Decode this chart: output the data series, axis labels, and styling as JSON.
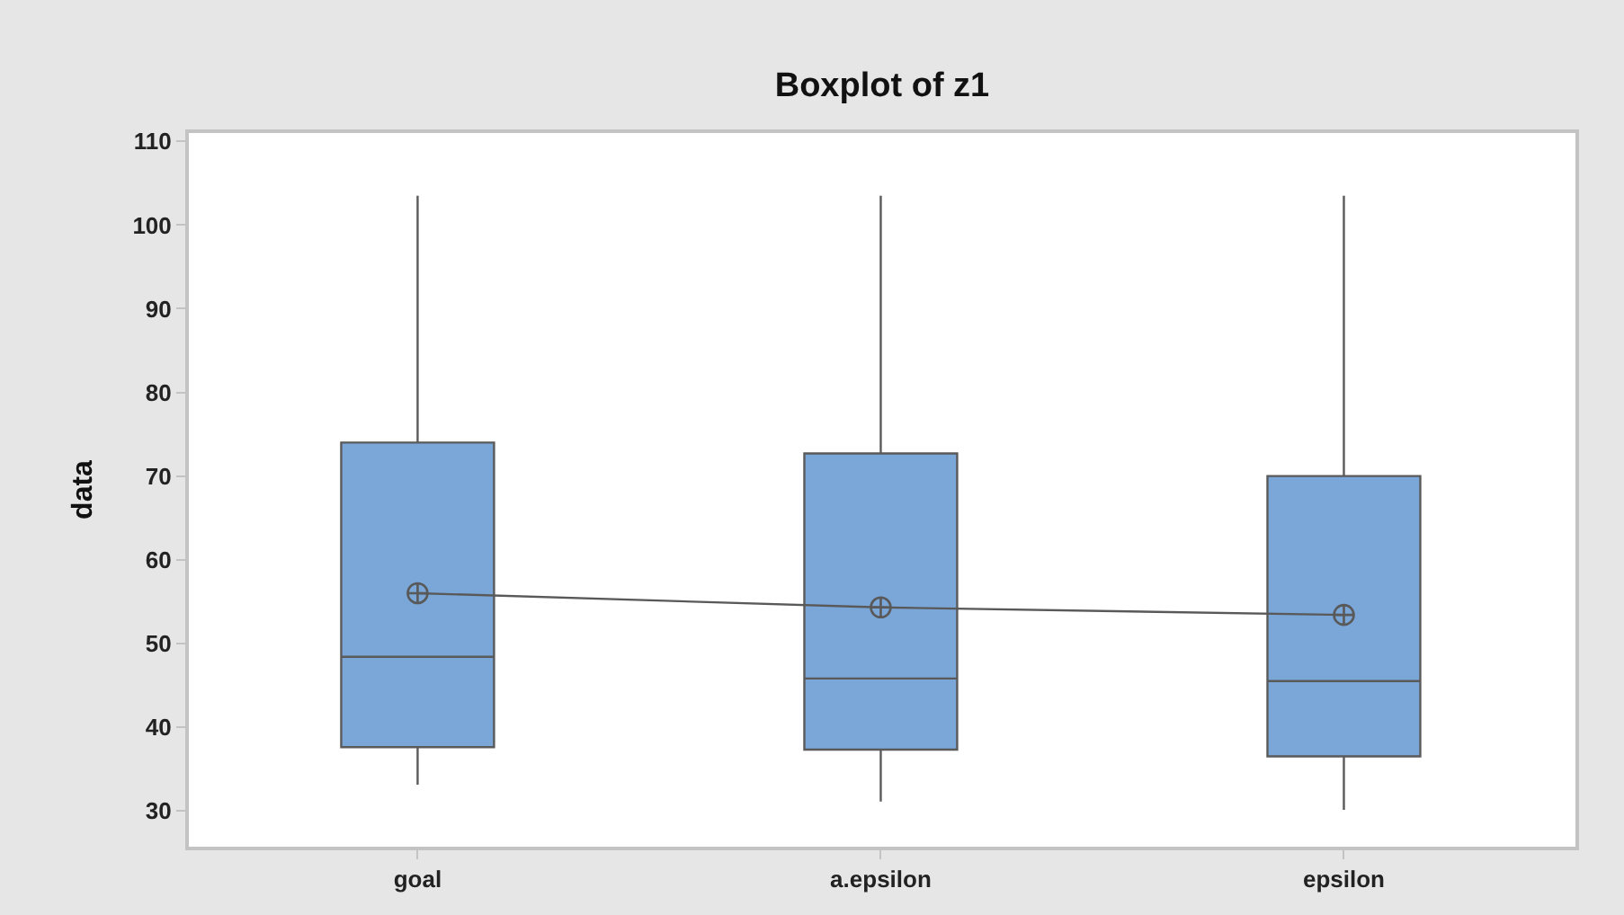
{
  "chart_data": {
    "type": "box",
    "title": "Boxplot of z1",
    "ylabel": "data",
    "categories": [
      "goal",
      "a.epsilon",
      "epsilon"
    ],
    "series": [
      {
        "type": "box",
        "color": "#7ba7d8",
        "boxes": [
          {
            "low": 33.1,
            "q1": 37.6,
            "median": 48.4,
            "q3": 74,
            "high": 103.5
          },
          {
            "low": 31.1,
            "q1": 37.3,
            "median": 45.8,
            "q3": 72.7,
            "high": 103.5
          },
          {
            "low": 30.1,
            "q1": 36.5,
            "median": 45.5,
            "q3": 70,
            "high": 103.5
          }
        ]
      },
      {
        "type": "line",
        "x": [
          "goal",
          "a.epsilon",
          "epsilon"
        ],
        "values": [
          56,
          54.3,
          53.4
        ],
        "color": "#595959",
        "marker": "cross"
      }
    ],
    "ylim": [
      25.7,
      111
    ],
    "yticks": [
      30,
      40,
      50,
      60,
      70,
      80,
      90,
      100,
      110
    ]
  }
}
